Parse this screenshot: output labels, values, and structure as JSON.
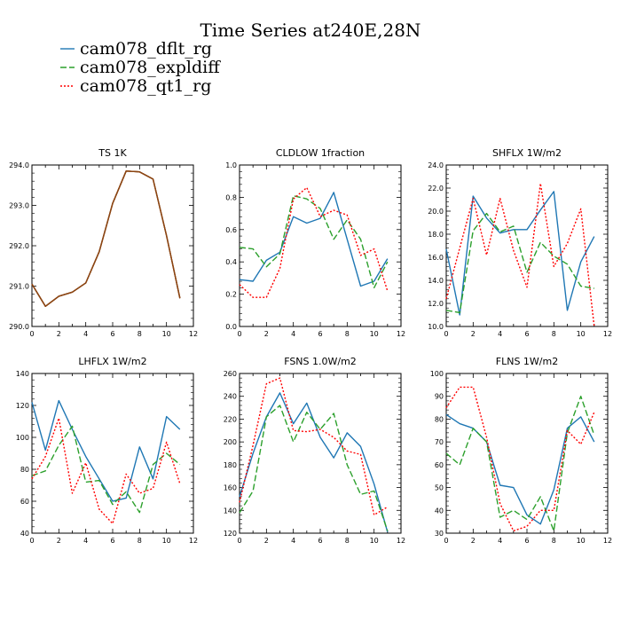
{
  "title": "Time Series at240E,28N",
  "legend": [
    {
      "name": "cam078_dflt_rg",
      "color": "#1f77b4",
      "dash": ""
    },
    {
      "name": "cam078_expldiff",
      "color": "#2ca02c",
      "dash": "7,3"
    },
    {
      "name": "cam078_qt1_rg",
      "color": "#ff0000",
      "dash": "2,2"
    }
  ],
  "chart_data": [
    {
      "type": "line",
      "title": "TS   1K",
      "x": [
        0,
        1,
        2,
        3,
        4,
        5,
        6,
        7,
        8,
        9,
        10,
        11
      ],
      "xlim": [
        0,
        12
      ],
      "xticks": [
        0,
        2,
        4,
        6,
        8,
        10,
        12
      ],
      "ylim": [
        290.0,
        294.0
      ],
      "yticks": [
        290.0,
        291.0,
        292.0,
        293.0,
        294.0
      ],
      "ytick_labels": [
        "290.0",
        "291.0",
        "292.0",
        "293.0",
        "294.0"
      ],
      "series": [
        {
          "name": "cam078_dflt_rg",
          "values": [
            291.05,
            290.5,
            290.75,
            290.85,
            291.08,
            291.85,
            293.05,
            293.85,
            293.83,
            293.65,
            292.25,
            290.7
          ]
        },
        {
          "name": "cam078_expldiff",
          "values": [
            291.05,
            290.5,
            290.75,
            290.85,
            291.08,
            291.85,
            293.05,
            293.85,
            293.83,
            293.65,
            292.25,
            290.7
          ]
        },
        {
          "name": "cam078_qt1_rg",
          "values": [
            291.05,
            290.5,
            290.75,
            290.85,
            291.08,
            291.85,
            293.05,
            293.85,
            293.83,
            293.65,
            292.25,
            290.7
          ]
        }
      ],
      "overlay_color": "#8b4513"
    },
    {
      "type": "line",
      "title": "CLDLOW   1fraction",
      "x": [
        0,
        1,
        2,
        3,
        4,
        5,
        6,
        7,
        8,
        9,
        10,
        11
      ],
      "xlim": [
        0,
        12
      ],
      "xticks": [
        0,
        2,
        4,
        6,
        8,
        10,
        12
      ],
      "ylim": [
        0.0,
        1.0
      ],
      "yticks": [
        0.0,
        0.2,
        0.4,
        0.6,
        0.8,
        1.0
      ],
      "ytick_labels": [
        "0.0",
        "0.2",
        "0.4",
        "0.6",
        "0.8",
        "1.0"
      ],
      "series": [
        {
          "name": "cam078_dflt_rg",
          "values": [
            0.29,
            0.28,
            0.41,
            0.46,
            0.68,
            0.64,
            0.67,
            0.83,
            0.54,
            0.25,
            0.28,
            0.42
          ]
        },
        {
          "name": "cam078_expldiff",
          "values": [
            0.49,
            0.48,
            0.37,
            0.45,
            0.81,
            0.79,
            0.73,
            0.54,
            0.66,
            0.54,
            0.24,
            0.4
          ]
        },
        {
          "name": "cam078_qt1_rg",
          "values": [
            0.26,
            0.18,
            0.18,
            0.36,
            0.79,
            0.86,
            0.68,
            0.72,
            0.69,
            0.44,
            0.48,
            0.22
          ]
        }
      ]
    },
    {
      "type": "line",
      "title": "SHFLX   1W/m2",
      "x": [
        0,
        1,
        2,
        3,
        4,
        5,
        6,
        7,
        8,
        9,
        10,
        11
      ],
      "xlim": [
        0,
        12
      ],
      "xticks": [
        0,
        2,
        4,
        6,
        8,
        10,
        12
      ],
      "ylim": [
        10.0,
        24.0
      ],
      "yticks": [
        10.0,
        12.0,
        14.0,
        16.0,
        18.0,
        20.0,
        22.0,
        24.0
      ],
      "ytick_labels": [
        "10.0",
        "12.0",
        "14.0",
        "16.0",
        "18.0",
        "20.0",
        "22.0",
        "24.0"
      ],
      "series": [
        {
          "name": "cam078_dflt_rg",
          "values": [
            16.7,
            11.0,
            21.3,
            19.4,
            18.1,
            18.4,
            18.4,
            20.1,
            21.7,
            11.4,
            15.6,
            17.8
          ]
        },
        {
          "name": "cam078_expldiff",
          "values": [
            11.4,
            11.2,
            18.3,
            19.8,
            18.2,
            18.7,
            14.7,
            17.3,
            16.1,
            15.4,
            13.5,
            13.3
          ]
        },
        {
          "name": "cam078_qt1_rg",
          "values": [
            12.4,
            16.8,
            21.1,
            16.2,
            21.1,
            16.6,
            13.4,
            22.4,
            15.2,
            17.2,
            20.2,
            10.0
          ]
        }
      ]
    },
    {
      "type": "line",
      "title": "LHFLX   1W/m2",
      "x": [
        0,
        1,
        2,
        3,
        4,
        5,
        6,
        7,
        8,
        9,
        10,
        11
      ],
      "xlim": [
        0,
        12
      ],
      "xticks": [
        0,
        2,
        4,
        6,
        8,
        10,
        12
      ],
      "ylim": [
        40,
        140
      ],
      "yticks": [
        40,
        60,
        80,
        100,
        120,
        140
      ],
      "ytick_labels": [
        "40",
        "60",
        "80",
        "100",
        "120",
        "140"
      ],
      "series": [
        {
          "name": "cam078_dflt_rg",
          "values": [
            122,
            92,
            123,
            105,
            88,
            74,
            60,
            62,
            94,
            74,
            113,
            105
          ]
        },
        {
          "name": "cam078_expldiff",
          "values": [
            76,
            79,
            95,
            107,
            72,
            73,
            58,
            66,
            53,
            83,
            90,
            83
          ]
        },
        {
          "name": "cam078_qt1_rg",
          "values": [
            74,
            88,
            112,
            65,
            84,
            55,
            46,
            77,
            65,
            68,
            97,
            71
          ]
        }
      ]
    },
    {
      "type": "line",
      "title": "FSNS   1.0W/m2",
      "x": [
        0,
        1,
        2,
        3,
        4,
        5,
        6,
        7,
        8,
        9,
        10,
        11
      ],
      "xlim": [
        0,
        12
      ],
      "xticks": [
        0,
        2,
        4,
        6,
        8,
        10,
        12
      ],
      "ylim": [
        120,
        260
      ],
      "yticks": [
        120,
        140,
        160,
        180,
        200,
        220,
        240,
        260
      ],
      "ytick_labels": [
        "120",
        "140",
        "160",
        "180",
        "200",
        "220",
        "240",
        "260"
      ],
      "series": [
        {
          "name": "cam078_dflt_rg",
          "values": [
            152,
            190,
            222,
            243,
            216,
            234,
            204,
            186,
            208,
            196,
            163,
            121
          ]
        },
        {
          "name": "cam078_expldiff",
          "values": [
            138,
            157,
            222,
            232,
            200,
            226,
            211,
            225,
            180,
            154,
            157,
            122
          ]
        },
        {
          "name": "cam078_qt1_rg",
          "values": [
            147,
            197,
            251,
            256,
            210,
            209,
            211,
            204,
            192,
            189,
            136,
            143
          ]
        }
      ]
    },
    {
      "type": "line",
      "title": "FLNS   1W/m2",
      "x": [
        0,
        1,
        2,
        3,
        4,
        5,
        6,
        7,
        8,
        9,
        10,
        11
      ],
      "xlim": [
        0,
        12
      ],
      "xticks": [
        0,
        2,
        4,
        6,
        8,
        10,
        12
      ],
      "ylim": [
        30,
        100
      ],
      "yticks": [
        30,
        40,
        50,
        60,
        70,
        80,
        90,
        100
      ],
      "ytick_labels": [
        "30",
        "40",
        "50",
        "60",
        "70",
        "80",
        "90",
        "100"
      ],
      "series": [
        {
          "name": "cam078_dflt_rg",
          "values": [
            82,
            78,
            76,
            70,
            51,
            50,
            38,
            34,
            49,
            76,
            81,
            70
          ]
        },
        {
          "name": "cam078_expldiff",
          "values": [
            65,
            60,
            76,
            70,
            37,
            40,
            36,
            46,
            31,
            74,
            90,
            73
          ]
        },
        {
          "name": "cam078_qt1_rg",
          "values": [
            85,
            94,
            94,
            72,
            43,
            31,
            33,
            40,
            40,
            75,
            69,
            83
          ]
        }
      ]
    }
  ]
}
